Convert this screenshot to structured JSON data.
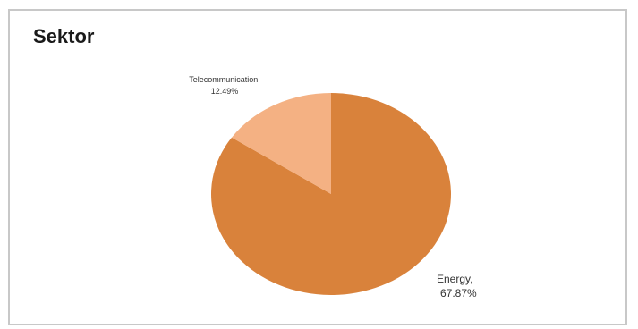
{
  "chart_data": {
    "type": "pie",
    "title": "Sektor",
    "slices": [
      {
        "name": "Energy",
        "value": 67.87,
        "label": "Energy,",
        "pct": "67.87%",
        "color": "#d9823b"
      },
      {
        "name": "Telecommunication",
        "value": 12.49,
        "label": "Telecommunication,",
        "pct": "12.49%",
        "color": "#f4b183"
      }
    ]
  }
}
